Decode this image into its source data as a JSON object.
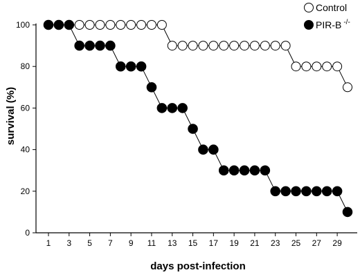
{
  "chart_data": {
    "type": "line",
    "xlabel": "days post-infection",
    "ylabel": "survival (%)",
    "xlim": [
      1,
      30
    ],
    "ylim": [
      0,
      100
    ],
    "xticks": [
      1,
      3,
      5,
      7,
      9,
      11,
      13,
      15,
      17,
      19,
      21,
      23,
      25,
      27,
      29
    ],
    "yticks": [
      0,
      20,
      40,
      60,
      80,
      100
    ],
    "grid": false,
    "legend_position": "top-right",
    "x": [
      1,
      2,
      3,
      4,
      5,
      6,
      7,
      8,
      9,
      10,
      11,
      12,
      13,
      14,
      15,
      16,
      17,
      18,
      19,
      20,
      21,
      22,
      23,
      24,
      25,
      26,
      27,
      28,
      29,
      30
    ],
    "series": [
      {
        "name": "Control",
        "marker": "open-circle",
        "color": "#000000",
        "values": [
          100,
          100,
          100,
          100,
          100,
          100,
          100,
          100,
          100,
          100,
          100,
          100,
          90,
          90,
          90,
          90,
          90,
          90,
          90,
          90,
          90,
          90,
          90,
          90,
          80,
          80,
          80,
          80,
          80,
          70
        ]
      },
      {
        "name": "PIR-B",
        "name_superscript": "-/-",
        "marker": "filled-circle",
        "color": "#000000",
        "values": [
          100,
          100,
          100,
          90,
          90,
          90,
          90,
          80,
          80,
          80,
          70,
          60,
          60,
          60,
          50,
          40,
          40,
          30,
          30,
          30,
          30,
          30,
          20,
          20,
          20,
          20,
          20,
          20,
          20,
          10
        ]
      }
    ]
  }
}
